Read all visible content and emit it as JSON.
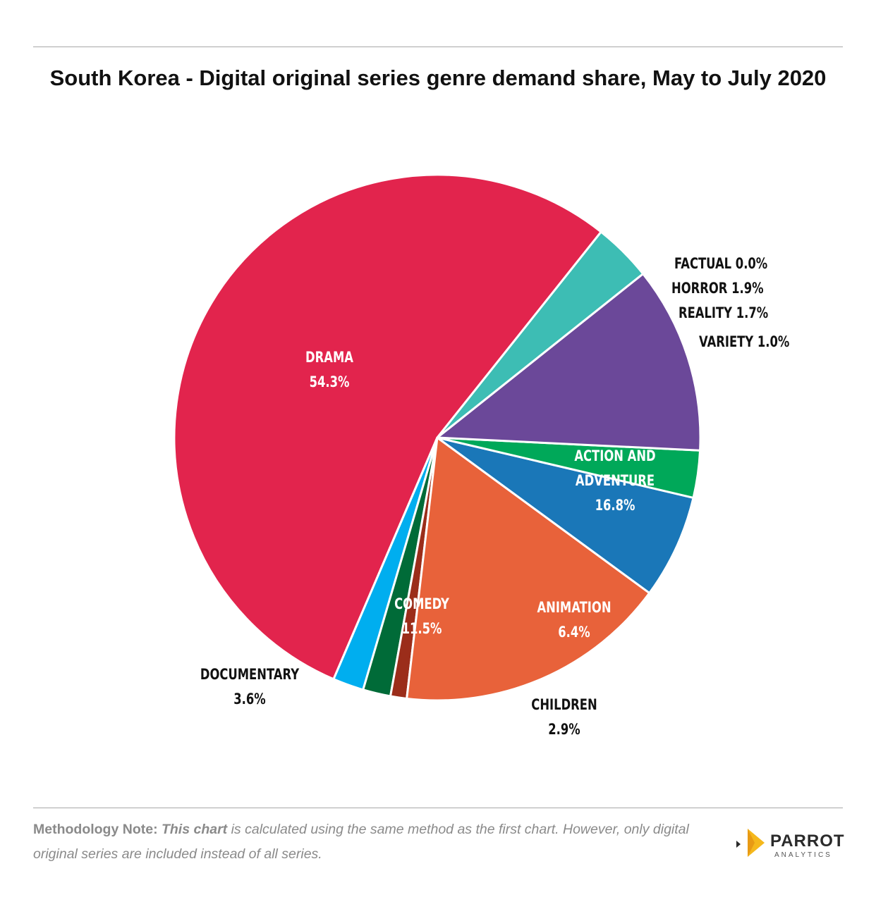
{
  "title": "South Korea - Digital original series genre demand share, May to July 2020",
  "chart_data": {
    "type": "pie",
    "title": "South Korea - Digital original series genre demand share, May to July 2020",
    "slices": [
      {
        "label": "DRAMA",
        "value": 54.3,
        "value_label": "54.3%",
        "color": "#e2244d"
      },
      {
        "label": "FACTUAL",
        "value": 0.0,
        "value_label": "0.0%",
        "color": "#7f7f7f"
      },
      {
        "label": "HORROR",
        "value": 1.9,
        "value_label": "1.9%",
        "color": "#00aeef"
      },
      {
        "label": "REALITY",
        "value": 1.7,
        "value_label": "1.7%",
        "color": "#006b38"
      },
      {
        "label": "VARIETY",
        "value": 1.0,
        "value_label": "1.0%",
        "color": "#9b2d1a"
      },
      {
        "label": "ACTION AND ADVENTURE",
        "value": 16.8,
        "value_label": "16.8%",
        "color": "#e8623a"
      },
      {
        "label": "ANIMATION",
        "value": 6.4,
        "value_label": "6.4%",
        "color": "#1a77b8"
      },
      {
        "label": "CHILDREN",
        "value": 2.9,
        "value_label": "2.9%",
        "color": "#00a859"
      },
      {
        "label": "COMEDY",
        "value": 11.5,
        "value_label": "11.5%",
        "color": "#6b4899"
      },
      {
        "label": "DOCUMENTARY",
        "value": 3.6,
        "value_label": "3.6%",
        "color": "#3dbdb4"
      }
    ]
  },
  "note": {
    "lead": "Methodology Note:",
    "emphasis": "This chart",
    "text": "is calculated using the same method as the first chart. However, only digital original series are included instead of all series."
  },
  "logo": {
    "word": "PARROT",
    "sub": "ANALYTICS"
  }
}
